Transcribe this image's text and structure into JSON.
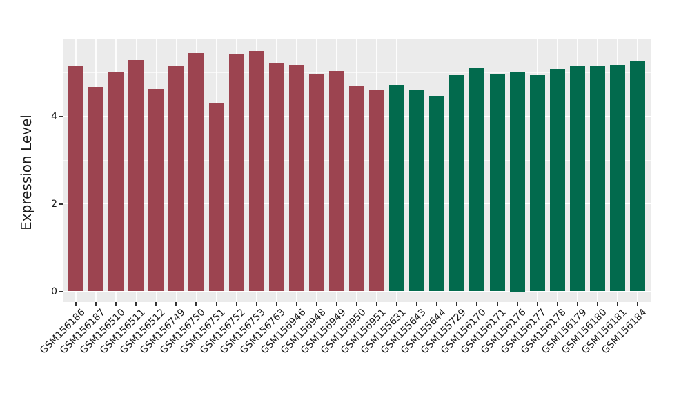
{
  "chart_data": {
    "type": "bar",
    "title": "",
    "xlabel": "",
    "ylabel": "Expression Level",
    "ylim": [
      0,
      5.75
    ],
    "yticks_major": [
      0,
      2,
      4
    ],
    "yticks_minor": [
      1,
      3,
      5
    ],
    "grid": "on",
    "legend": "none",
    "panel_background": "#EBEBEB",
    "gridline_color": "#FFFFFF",
    "axis_text_color": "#1a1a1a",
    "tick_mark_color": "#333333",
    "group_colors": {
      "group1": "#9C4450",
      "group2": "#026A4D"
    },
    "categories": [
      "GSM156186",
      "GSM156187",
      "GSM156510",
      "GSM156511",
      "GSM156512",
      "GSM156749",
      "GSM156750",
      "GSM156751",
      "GSM156752",
      "GSM156753",
      "GSM156763",
      "GSM156946",
      "GSM156948",
      "GSM156949",
      "GSM156950",
      "GSM156951",
      "GSM155631",
      "GSM155643",
      "GSM155644",
      "GSM155729",
      "GSM156170",
      "GSM156171",
      "GSM156176",
      "GSM156177",
      "GSM156178",
      "GSM156179",
      "GSM156180",
      "GSM156181",
      "GSM156184"
    ],
    "values": [
      5.15,
      4.67,
      5.01,
      5.28,
      4.62,
      5.14,
      5.44,
      4.3,
      5.43,
      5.49,
      5.2,
      5.17,
      4.97,
      5.03,
      4.7,
      4.6,
      4.72,
      4.59,
      4.46,
      4.94,
      5.11,
      4.97,
      5.0,
      4.94,
      5.08,
      5.15,
      5.14,
      5.17,
      5.27
    ],
    "groups": [
      "group1",
      "group1",
      "group1",
      "group1",
      "group1",
      "group1",
      "group1",
      "group1",
      "group1",
      "group1",
      "group1",
      "group1",
      "group1",
      "group1",
      "group1",
      "group1",
      "group2",
      "group2",
      "group2",
      "group2",
      "group2",
      "group2",
      "group2",
      "group2",
      "group2",
      "group2",
      "group2",
      "group2",
      "group2"
    ]
  }
}
